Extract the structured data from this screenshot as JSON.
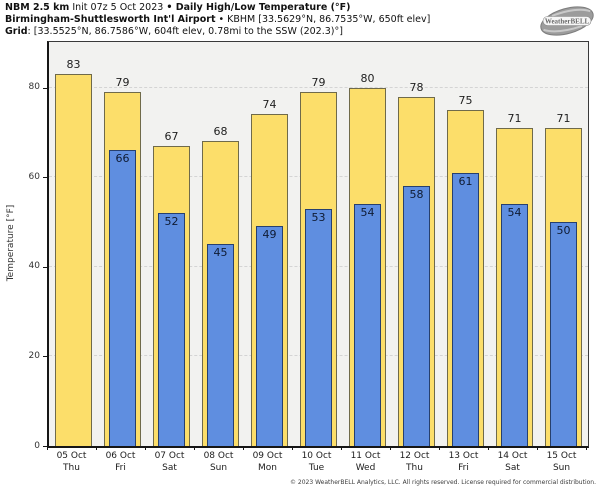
{
  "header": {
    "line1_bold": "NBM 2.5 km",
    "line1_regular": " Init 07z 5 Oct 2023 ",
    "line1_bold2": "• Daily High/Low Temperature (°F)",
    "line2_bold": "Birmingham-Shuttlesworth Int'l Airport",
    "line2_regular": " • KBHM [33.5629°N, 86.7535°W, 650ft elev]",
    "line3_bold": "Grid",
    "line3_regular": ": [33.5525°N, 86.7586°W, 604ft elev, 0.78mi to the SSW (202.3)°]"
  },
  "logo": {
    "text": "WeatherBELL"
  },
  "chart_data": {
    "type": "bar",
    "title": "NBM 2.5 km Init 07z 5 Oct 2023 • Daily High/Low Temperature (°F)",
    "station": "Birmingham-Shuttlesworth Int'l Airport • KBHM [33.5629°N, 86.7535°W, 650ft elev]",
    "grid_point": "[33.5525°N, 86.7586°W, 604ft elev, 0.78mi to the SSW (202.3)°]",
    "ylabel": "Temperature [°F]",
    "ylim": [
      0,
      90.4
    ],
    "yticks": [
      0,
      20,
      40,
      60,
      80
    ],
    "grid_on": true,
    "legend": "none",
    "categories": [
      {
        "date": "05 Oct",
        "day": "Thu"
      },
      {
        "date": "06 Oct",
        "day": "Fri"
      },
      {
        "date": "07 Oct",
        "day": "Sat"
      },
      {
        "date": "08 Oct",
        "day": "Sun"
      },
      {
        "date": "09 Oct",
        "day": "Mon"
      },
      {
        "date": "10 Oct",
        "day": "Tue"
      },
      {
        "date": "11 Oct",
        "day": "Wed"
      },
      {
        "date": "12 Oct",
        "day": "Thu"
      },
      {
        "date": "13 Oct",
        "day": "Fri"
      },
      {
        "date": "14 Oct",
        "day": "Sat"
      },
      {
        "date": "15 Oct",
        "day": "Sun"
      }
    ],
    "series": [
      {
        "name": "Daily High",
        "color": "#FCDE6A",
        "values": [
          83,
          79,
          67,
          68,
          74,
          79,
          80,
          78,
          75,
          71,
          71
        ]
      },
      {
        "name": "Daily Low",
        "color": "#5F8EE0",
        "values": [
          null,
          66,
          52,
          45,
          49,
          53,
          54,
          58,
          61,
          54,
          50
        ]
      }
    ]
  },
  "footer": "© 2023 WeatherBELL Analytics, LLC. All rights reserved. License required for commercial distribution."
}
